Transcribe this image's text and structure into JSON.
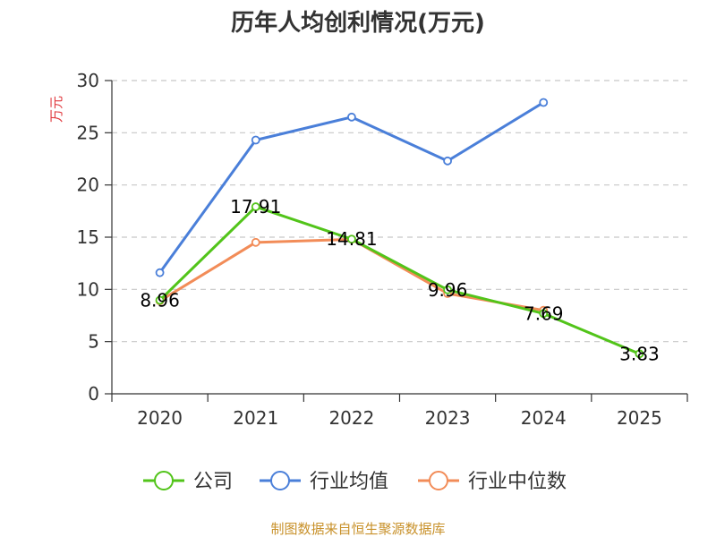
{
  "chart_data": {
    "type": "line",
    "title": "历年人均创利情况(万元)",
    "ylabel": "万元",
    "categories": [
      "2020",
      "2021",
      "2022",
      "2023",
      "2024",
      "2025"
    ],
    "yticks": [
      "0",
      "5",
      "10",
      "15",
      "20",
      "25",
      "30"
    ],
    "ylim": [
      0,
      30
    ],
    "grid": true,
    "legend_position": "bottom",
    "series": [
      {
        "name": "公司",
        "color": "#52c41a",
        "values": [
          8.96,
          17.91,
          14.81,
          9.96,
          7.69,
          3.83
        ],
        "labels": [
          "8.96",
          "17.91",
          "14.81",
          "9.96",
          "7.69",
          "3.83"
        ]
      },
      {
        "name": "行业均值",
        "color": "#4a7fd9",
        "values": [
          11.6,
          24.3,
          26.5,
          22.3,
          27.9,
          null
        ]
      },
      {
        "name": "行业中位数",
        "color": "#f28c58",
        "values": [
          8.9,
          14.5,
          14.8,
          9.6,
          8.0,
          null
        ]
      }
    ]
  },
  "source": "制图数据来自恒生聚源数据库"
}
